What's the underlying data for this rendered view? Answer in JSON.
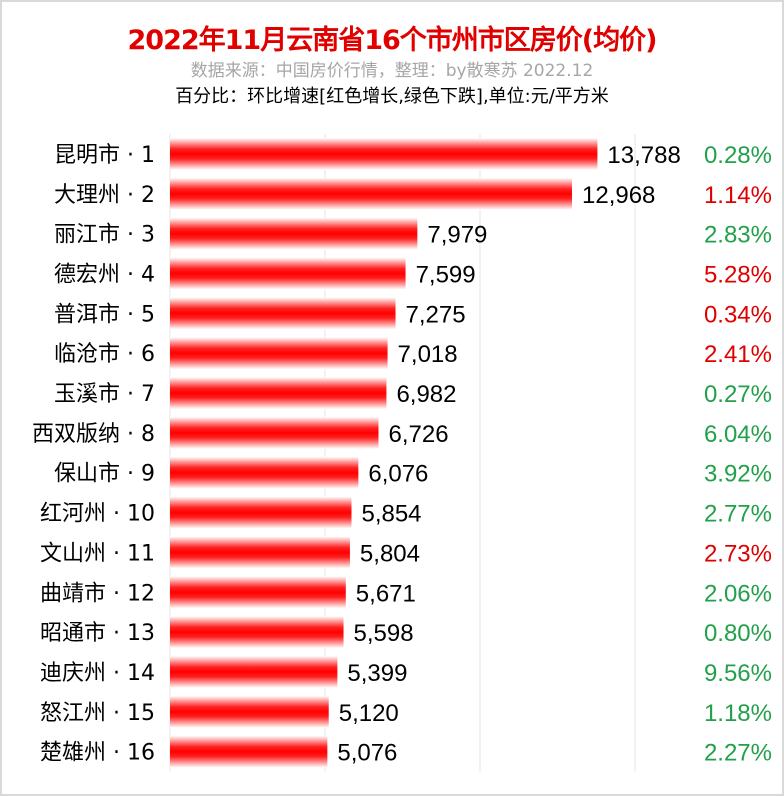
{
  "chart_data": {
    "type": "bar",
    "orientation": "horizontal",
    "title": "2022年11月云南省16个市州市区房价(均价)",
    "subtitle": "数据来源：中国房价行情，整理：by散寒苏 2022.12",
    "note": "百分比：环比增速[红色增长,绿色下跌],单位:元/平方米",
    "categories": [
      "昆明市 · 1",
      "大理州 · 2",
      "丽江市 · 3",
      "德宏州 · 4",
      "普洱市 · 5",
      "临沧市 · 6",
      "玉溪市 · 7",
      "西双版纳 · 8",
      "保山市 · 9",
      "红河州 · 10",
      "文山州 · 11",
      "曲靖市 · 12",
      "昭通市 · 13",
      "迪庆州 · 14",
      "怒江州 · 15",
      "楚雄州 · 16"
    ],
    "values": [
      13788,
      12968,
      7979,
      7599,
      7275,
      7018,
      6982,
      6726,
      6076,
      5854,
      5804,
      5671,
      5598,
      5399,
      5120,
      5076
    ],
    "value_labels": [
      "13,788",
      "12,968",
      "7,979",
      "7,599",
      "7,275",
      "7,018",
      "6,982",
      "6,726",
      "6,076",
      "5,854",
      "5,804",
      "5,671",
      "5,598",
      "5,399",
      "5,120",
      "5,076"
    ],
    "change_labels": [
      "0.28%",
      "1.14%",
      "2.83%",
      "5.28%",
      "0.34%",
      "2.41%",
      "0.27%",
      "6.04%",
      "3.92%",
      "2.77%",
      "2.73%",
      "2.06%",
      "0.80%",
      "9.56%",
      "1.18%",
      "2.27%"
    ],
    "change_direction": [
      "down",
      "up",
      "down",
      "up",
      "up",
      "up",
      "down",
      "down",
      "down",
      "down",
      "up",
      "down",
      "down",
      "down",
      "down",
      "down"
    ],
    "xlim": [
      0,
      20000
    ],
    "grid_step": 5000,
    "grid": true,
    "colors": {
      "bar": "#ff0000",
      "up": "#e00000",
      "down": "#22a04a",
      "title": "#e00000",
      "subtitle": "#a6a6a6"
    }
  }
}
